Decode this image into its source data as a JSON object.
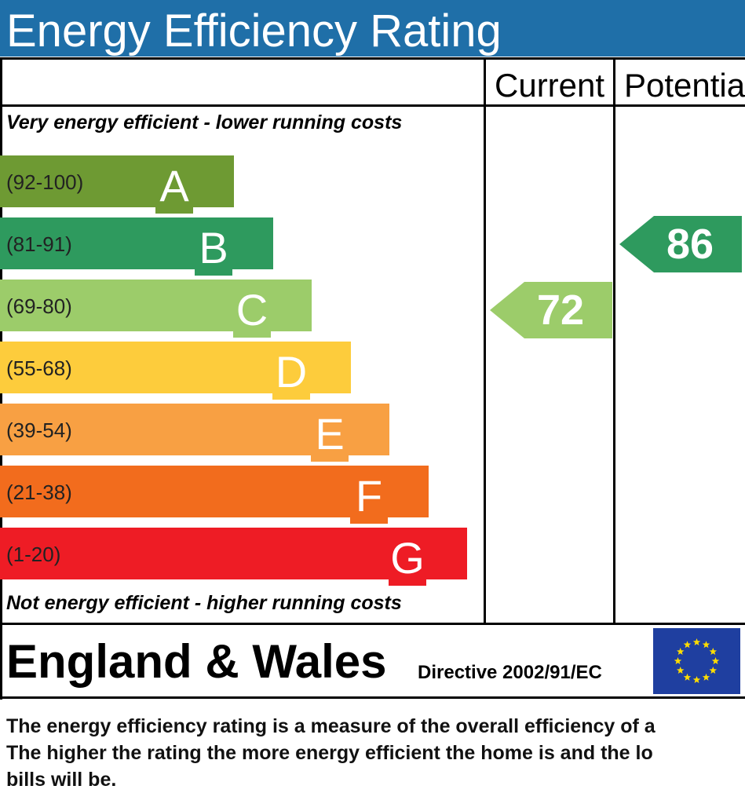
{
  "title": "Energy Efficiency Rating",
  "columns": {
    "current": "Current",
    "potential": "Potentia"
  },
  "top_note": "Very energy efficient - lower running costs",
  "bottom_note": "Not energy efficient - higher running costs",
  "chart_data": {
    "type": "bar",
    "title": "Energy Efficiency Rating",
    "categories": [
      "A",
      "B",
      "C",
      "D",
      "E",
      "F",
      "G"
    ],
    "ranges": [
      "(92-100)",
      "(81-91)",
      "(69-80)",
      "(55-68)",
      "(39-54)",
      "(21-38)",
      "(1-20)"
    ],
    "colors": [
      "#6e9a33",
      "#2e9a5e",
      "#9ccc6a",
      "#fdcc3c",
      "#f8a043",
      "#f26c1d",
      "#ee1c25"
    ],
    "current": {
      "value": 72,
      "band": "C",
      "color": "#9ccc6a"
    },
    "potential": {
      "value": 86,
      "band": "B",
      "color": "#2e9a5e"
    }
  },
  "footer": {
    "country": "England & Wales",
    "directive": "Directive 2002/91/EC",
    "flag_colors": {
      "field": "#1f3fa0",
      "stars": "#ffdd00"
    }
  },
  "description": [
    "The energy efficiency rating is a measure of the overall efficiency of a",
    "The higher the rating the more energy efficient the home is and the lo",
    "bills will be."
  ]
}
